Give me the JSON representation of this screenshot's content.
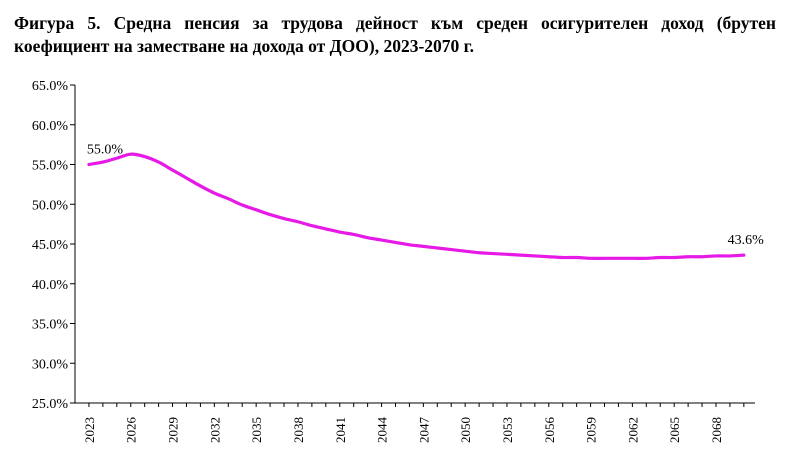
{
  "chart_data": {
    "type": "line",
    "title": "Фигура 5. Средна пенсия за трудова дейност към среден осигурителен доход (брутен коефициент на заместване на дохода от ДОО), 2023-2070 г.",
    "xlabel": "",
    "ylabel": "",
    "ylim": [
      25,
      65
    ],
    "yticks": [
      "25.0%",
      "30.0%",
      "35.0%",
      "40.0%",
      "45.0%",
      "50.0%",
      "55.0%",
      "60.0%",
      "65.0%"
    ],
    "xticks": [
      "2023",
      "2026",
      "2029",
      "2032",
      "2035",
      "2038",
      "2041",
      "2044",
      "2047",
      "2050",
      "2053",
      "2056",
      "2059",
      "2062",
      "2065",
      "2068"
    ],
    "x": [
      2023,
      2024,
      2025,
      2026,
      2027,
      2028,
      2029,
      2030,
      2031,
      2032,
      2033,
      2034,
      2035,
      2036,
      2037,
      2038,
      2039,
      2040,
      2041,
      2042,
      2043,
      2044,
      2045,
      2046,
      2047,
      2048,
      2049,
      2050,
      2051,
      2052,
      2053,
      2054,
      2055,
      2056,
      2057,
      2058,
      2059,
      2060,
      2061,
      2062,
      2063,
      2064,
      2065,
      2066,
      2067,
      2068,
      2069,
      2070
    ],
    "series": [
      {
        "name": "Брутен коефициент на заместване",
        "color": "#e619e6",
        "values": [
          55.0,
          55.3,
          55.8,
          56.3,
          56.0,
          55.3,
          54.3,
          53.3,
          52.3,
          51.4,
          50.7,
          49.9,
          49.3,
          48.7,
          48.2,
          47.8,
          47.3,
          46.9,
          46.5,
          46.2,
          45.8,
          45.5,
          45.2,
          44.9,
          44.7,
          44.5,
          44.3,
          44.1,
          43.9,
          43.8,
          43.7,
          43.6,
          43.5,
          43.4,
          43.3,
          43.3,
          43.2,
          43.2,
          43.2,
          43.2,
          43.2,
          43.3,
          43.3,
          43.4,
          43.4,
          43.5,
          43.5,
          43.6
        ]
      }
    ],
    "annotations": [
      {
        "x": 2023,
        "label": "55.0%"
      },
      {
        "x": 2070,
        "label": "43.6%"
      }
    ],
    "grid": false,
    "legend": "none"
  }
}
